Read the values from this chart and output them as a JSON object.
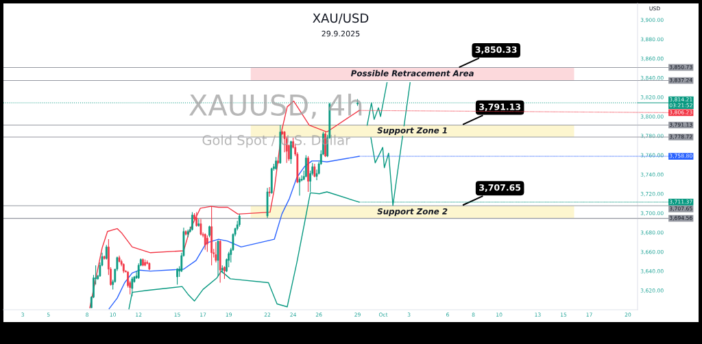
{
  "chart_data": {
    "type": "candlestick",
    "title": "XAU/USD",
    "subtitle": "29.9.2025",
    "ylabel": "USD",
    "ylim": [
      3600,
      3917
    ],
    "yticks": [
      {
        "value": 3620,
        "label": "3,620.00"
      },
      {
        "value": 3640,
        "label": "3,640.00"
      },
      {
        "value": 3660,
        "label": "3,660.00"
      },
      {
        "value": 3680,
        "label": "3,680.00"
      },
      {
        "value": 3700,
        "label": "3,700.00"
      },
      {
        "value": 3720,
        "label": "3,720.00"
      },
      {
        "value": 3740,
        "label": "3,740.00"
      },
      {
        "value": 3760,
        "label": "3,760.00"
      },
      {
        "value": 3780,
        "label": "3,780.00"
      },
      {
        "value": 3800,
        "label": "3,800.00"
      },
      {
        "value": 3820,
        "label": "3,820.00"
      },
      {
        "value": 3840,
        "label": "3,840.00"
      },
      {
        "value": 3860,
        "label": "3,860.00"
      },
      {
        "value": 3880,
        "label": "3,880.00"
      },
      {
        "value": 3900,
        "label": "3,900.00"
      }
    ],
    "xlim": [
      "2025-09-01T12:00",
      "2025-10-20T18:00"
    ],
    "xticks": [
      {
        "value": "2025-09-03",
        "label": "3"
      },
      {
        "value": "2025-09-05",
        "label": "5"
      },
      {
        "value": "2025-09-08",
        "label": "8"
      },
      {
        "value": "2025-09-10",
        "label": "10"
      },
      {
        "value": "2025-09-12",
        "label": "12"
      },
      {
        "value": "2025-09-15",
        "label": "15"
      },
      {
        "value": "2025-09-17",
        "label": "17"
      },
      {
        "value": "2025-09-19",
        "label": "19"
      },
      {
        "value": "2025-09-22",
        "label": "22"
      },
      {
        "value": "2025-09-24",
        "label": "24"
      },
      {
        "value": "2025-09-26",
        "label": "26"
      },
      {
        "value": "2025-09-29",
        "label": "29"
      },
      {
        "value": "2025-10-01",
        "label": "Oct"
      },
      {
        "value": "2025-10-03",
        "label": "3"
      },
      {
        "value": "2025-10-06",
        "label": "6"
      },
      {
        "value": "2025-10-08",
        "label": "8"
      },
      {
        "value": "2025-10-10",
        "label": "10"
      },
      {
        "value": "2025-10-13",
        "label": "13"
      },
      {
        "value": "2025-10-15",
        "label": "15"
      },
      {
        "value": "2025-10-17",
        "label": "17"
      },
      {
        "value": "2025-10-20",
        "label": "20"
      }
    ],
    "grid": false,
    "series": [
      {
        "x": [
          "2025-09-08T08:00",
          "2025-09-08T12:00",
          "2025-09-08T16:00",
          "2025-09-08T20:00",
          "2025-09-09T00:00",
          "2025-09-09T04:00",
          "2025-09-09T08:00",
          "2025-09-09T12:00",
          "2025-09-09T16:00",
          "2025-09-09T20:00",
          "2025-09-10T00:00",
          "2025-09-10T04:00",
          "2025-09-10T08:00",
          "2025-09-10T12:00",
          "2025-09-10T16:00",
          "2025-09-10T20:00",
          "2025-09-11T00:00",
          "2025-09-11T04:00",
          "2025-09-11T08:00",
          "2025-09-11T12:00",
          "2025-09-11T16:00",
          "2025-09-11T20:00",
          "2025-09-12T00:00",
          "2025-09-12T04:00",
          "2025-09-12T08:00",
          "2025-09-12T12:00",
          "2025-09-12T16:00",
          "2025-09-12T20:00",
          "2025-09-15T00:00",
          "2025-09-15T04:00",
          "2025-09-15T08:00",
          "2025-09-15T12:00",
          "2025-09-15T16:00",
          "2025-09-15T20:00",
          "2025-09-16T00:00",
          "2025-09-16T04:00",
          "2025-09-16T08:00",
          "2025-09-16T12:00",
          "2025-09-16T16:00",
          "2025-09-16T20:00",
          "2025-09-17T00:00",
          "2025-09-17T04:00",
          "2025-09-17T08:00",
          "2025-09-17T12:00",
          "2025-09-17T16:00",
          "2025-09-17T20:00",
          "2025-09-18T00:00",
          "2025-09-18T04:00",
          "2025-09-18T08:00",
          "2025-09-18T12:00",
          "2025-09-18T16:00",
          "2025-09-18T20:00",
          "2025-09-19T00:00",
          "2025-09-19T04:00",
          "2025-09-19T08:00",
          "2025-09-19T12:00",
          "2025-09-19T16:00",
          "2025-09-19T20:00",
          "2025-09-22T00:00",
          "2025-09-22T04:00",
          "2025-09-22T08:00",
          "2025-09-22T12:00",
          "2025-09-22T16:00",
          "2025-09-22T20:00",
          "2025-09-23T00:00",
          "2025-09-23T04:00",
          "2025-09-23T08:00",
          "2025-09-23T12:00",
          "2025-09-23T16:00",
          "2025-09-23T20:00",
          "2025-09-24T00:00",
          "2025-09-24T04:00",
          "2025-09-24T08:00",
          "2025-09-24T12:00",
          "2025-09-24T16:00",
          "2025-09-24T20:00",
          "2025-09-25T00:00",
          "2025-09-25T04:00",
          "2025-09-25T08:00",
          "2025-09-25T12:00",
          "2025-09-25T16:00",
          "2025-09-25T20:00",
          "2025-09-26T00:00",
          "2025-09-26T04:00",
          "2025-09-26T08:00",
          "2025-09-26T12:00",
          "2025-09-26T16:00",
          "2025-09-26T20:00",
          "2025-09-29T00:00"
        ],
        "ohlc": [
          [
            3602,
            3614,
            3602,
            3613
          ],
          [
            3613,
            3636,
            3612,
            3633
          ],
          [
            3632,
            3646,
            3626,
            3633
          ],
          [
            3632,
            3636,
            3631,
            3635
          ],
          [
            3635,
            3649,
            3634,
            3646
          ],
          [
            3646,
            3659,
            3645,
            3655
          ],
          [
            3655,
            3656,
            3652,
            3653
          ],
          [
            3653,
            3667,
            3652,
            3665
          ],
          [
            3665,
            3673,
            3636,
            3642
          ],
          [
            3642,
            3644,
            3625,
            3626
          ],
          [
            3626,
            3631,
            3621,
            3629
          ],
          [
            3629,
            3642,
            3628,
            3642
          ],
          [
            3642,
            3655,
            3640,
            3654
          ],
          [
            3654,
            3656,
            3649,
            3650
          ],
          [
            3650,
            3652,
            3645,
            3647
          ],
          [
            3647,
            3648,
            3638,
            3640
          ],
          [
            3640,
            3641,
            3639,
            3639
          ],
          [
            3639,
            3640,
            3623,
            3625
          ],
          [
            3628,
            3630,
            3616,
            3623
          ],
          [
            3622,
            3634,
            3614,
            3632
          ],
          [
            3629,
            3635,
            3628,
            3634
          ],
          [
            3633,
            3640,
            3632,
            3635
          ],
          [
            3633,
            3648,
            3632,
            3646
          ],
          [
            3646,
            3653,
            3645,
            3652
          ],
          [
            3652,
            3653,
            3645,
            3646
          ],
          [
            3649,
            3652,
            3645,
            3646
          ],
          [
            3649,
            3651,
            3647,
            3648
          ],
          [
            3648,
            3649,
            3641,
            3642
          ],
          [
            3634,
            3643,
            3626,
            3642
          ],
          [
            3640,
            3645,
            3634,
            3642
          ],
          [
            3640,
            3659,
            3639,
            3656
          ],
          [
            3656,
            3685,
            3655,
            3681
          ],
          [
            3681,
            3682,
            3677,
            3678
          ],
          [
            3678,
            3683,
            3675,
            3681
          ],
          [
            3681,
            3686,
            3680,
            3683
          ],
          [
            3683,
            3701,
            3682,
            3698
          ],
          [
            3698,
            3700,
            3693,
            3694
          ],
          [
            3695,
            3701,
            3686,
            3687
          ],
          [
            3687,
            3694,
            3686,
            3689
          ],
          [
            3689,
            3694,
            3677,
            3678
          ],
          [
            3678,
            3680,
            3675,
            3677
          ],
          [
            3678,
            3679,
            3662,
            3667
          ],
          [
            3674,
            3677,
            3660,
            3668
          ],
          [
            3677,
            3687,
            3675,
            3686
          ],
          [
            3686,
            3707,
            3646,
            3659
          ],
          [
            3659,
            3663,
            3654,
            3658
          ],
          [
            3657,
            3670,
            3649,
            3651
          ],
          [
            3651,
            3672,
            3635,
            3671
          ],
          [
            3671,
            3672,
            3628,
            3641
          ],
          [
            3641,
            3646,
            3638,
            3643
          ],
          [
            3644,
            3645,
            3632,
            3640
          ],
          [
            3640,
            3653,
            3639,
            3652
          ],
          [
            3651,
            3660,
            3644,
            3658
          ],
          [
            3657,
            3664,
            3649,
            3662
          ],
          [
            3662,
            3679,
            3661,
            3678
          ],
          [
            3678,
            3685,
            3676,
            3684
          ],
          [
            3684,
            3692,
            3682,
            3688
          ],
          [
            3688,
            3699,
            3686,
            3697
          ],
          [
            3697,
            3726,
            3695,
            3722
          ],
          [
            3722,
            3727,
            3717,
            3721
          ],
          [
            3721,
            3747,
            3720,
            3746
          ],
          [
            3746,
            3751,
            3744,
            3748
          ],
          [
            3746,
            3758,
            3745,
            3754
          ],
          [
            3754,
            3755,
            3751,
            3752
          ],
          [
            3752,
            3791,
            3751,
            3784
          ],
          [
            3784,
            3785,
            3781,
            3782
          ],
          [
            3784,
            3785,
            3763,
            3777
          ],
          [
            3777,
            3779,
            3752,
            3764
          ],
          [
            3770,
            3771,
            3754,
            3756
          ],
          [
            3756,
            3775,
            3751,
            3774
          ],
          [
            3774,
            3778,
            3767,
            3768
          ],
          [
            3768,
            3771,
            3759,
            3761
          ],
          [
            3761,
            3763,
            3731,
            3732
          ],
          [
            3732,
            3737,
            3718,
            3735
          ],
          [
            3734,
            3739,
            3733,
            3735
          ],
          [
            3735,
            3744,
            3734,
            3738
          ],
          [
            3738,
            3760,
            3737,
            3757
          ],
          [
            3757,
            3759,
            3722,
            3733
          ],
          [
            3733,
            3744,
            3722,
            3741
          ],
          [
            3741,
            3752,
            3739,
            3748
          ],
          [
            3748,
            3751,
            3737,
            3738
          ],
          [
            3738,
            3745,
            3734,
            3741
          ],
          [
            3741,
            3753,
            3740,
            3751
          ],
          [
            3751,
            3765,
            3750,
            3761
          ],
          [
            3761,
            3784,
            3760,
            3782
          ],
          [
            3782,
            3784,
            3758,
            3759
          ],
          [
            3759,
            3781,
            3758,
            3778
          ],
          [
            3778,
            3814,
            3777,
            3813
          ],
          [
            3813,
            3818,
            3811,
            3814
          ]
        ],
        "colors": [
          "#089981",
          "#089981",
          "#089981",
          "#089981",
          "#089981",
          "#089981",
          "#f23645",
          "#089981",
          "#f23645",
          "#f23645",
          "#089981",
          "#089981",
          "#089981",
          "#f23645",
          "#f23645",
          "#f23645",
          "#f23645",
          "#f23645",
          "#f23645",
          "#089981",
          "#089981",
          "#089981",
          "#089981",
          "#089981",
          "#f23645",
          "#f23645",
          "#f23645",
          "#f23645",
          "#089981",
          "#089981",
          "#089981",
          "#089981",
          "#f23645",
          "#089981",
          "#089981",
          "#089981",
          "#f23645",
          "#f23645",
          "#089981",
          "#f23645",
          "#f23645",
          "#f23645",
          "#f23645",
          "#089981",
          "#f23645",
          "#f23645",
          "#f23645",
          "#089981",
          "#f23645",
          "#089981",
          "#f23645",
          "#089981",
          "#089981",
          "#089981",
          "#089981",
          "#089981",
          "#089981",
          "#089981",
          "#089981",
          "#f23645",
          "#089981",
          "#089981",
          "#089981",
          "#f23645",
          "#089981",
          "#f23645",
          "#f23645",
          "#f23645",
          "#f23645",
          "#089981",
          "#f23645",
          "#f23645",
          "#f23645",
          "#089981",
          "#089981",
          "#089981",
          "#089981",
          "#f23645",
          "#089981",
          "#089981",
          "#f23645",
          "#089981",
          "#089981",
          "#089981",
          "#089981",
          "#f23645",
          "#089981",
          "#089981",
          "#089981"
        ]
      },
      {
        "type": "line",
        "color": "#f23645",
        "x": [
          "2025-09-08T05:00",
          "2025-09-09T04:00",
          "2025-09-09T14:00",
          "2025-09-10T08:00",
          "2025-09-10T17:00",
          "2025-09-11T12:00",
          "2025-09-12T22:00",
          "2025-09-15T12:00",
          "2025-09-15T23:00",
          "2025-09-16T19:00",
          "2025-09-17T15:00",
          "2025-09-18T05:00",
          "2025-09-18T22:00",
          "2025-09-19T17:00",
          "2025-09-22T05:00",
          "2025-09-22T13:00",
          "2025-09-23T03:00",
          "2025-09-23T13:00",
          "2025-09-24T01:00",
          "2025-09-25T06:00",
          "2025-09-26T01:00",
          "2025-09-26T15:00",
          "2025-09-29T03:00"
        ],
        "values": [
          3602,
          3664,
          3681,
          3684,
          3679,
          3665,
          3659,
          3661,
          3682,
          3705,
          3707,
          3706,
          3706,
          3699,
          3701,
          3725,
          3786,
          3810,
          3816,
          3791,
          3787,
          3784,
          3806.23
        ],
        "value_labels": [
          null,
          null,
          null,
          null,
          null,
          null,
          null,
          null,
          null,
          null,
          null,
          null,
          null,
          null,
          null,
          null,
          null,
          null,
          null,
          null,
          null,
          null,
          "3,806.23"
        ]
      },
      {
        "type": "line",
        "color": "#2962ff",
        "x": [
          "2025-09-09T17:00",
          "2025-09-10T08:00",
          "2025-09-10T22:00",
          "2025-09-11T12:00",
          "2025-09-12T02:00",
          "2025-09-12T22:00",
          "2025-09-15T12:00",
          "2025-09-16T11:00",
          "2025-09-17T06:00",
          "2025-09-18T05:00",
          "2025-09-18T22:00",
          "2025-09-19T23:00",
          "2025-09-22T13:00",
          "2025-09-23T03:00",
          "2025-09-23T17:00",
          "2025-09-24T07:00",
          "2025-09-24T21:00",
          "2025-09-25T11:00",
          "2025-09-26T01:00",
          "2025-09-26T15:00",
          "2025-09-29T03:00"
        ],
        "values": [
          3601,
          3612,
          3628,
          3638,
          3641,
          3640,
          3642,
          3651,
          3669,
          3673,
          3671,
          3665,
          3673,
          3699,
          3715,
          3737,
          3748,
          3754,
          3754,
          3753,
          3758.8
        ],
        "value_labels": [
          null,
          null,
          null,
          null,
          null,
          null,
          null,
          null,
          null,
          null,
          null,
          null,
          null,
          null,
          null,
          null,
          null,
          null,
          null,
          null,
          "3,758.80"
        ]
      },
      {
        "type": "line",
        "color": "#089981",
        "x": [
          "2025-09-11T06:00",
          "2025-09-11T12:00",
          "2025-09-12T16:00",
          "2025-09-15T09:00",
          "2025-09-15T20:00",
          "2025-09-16T08:00",
          "2025-09-17T00:00",
          "2025-09-18T02:00",
          "2025-09-18T10:00",
          "2025-09-19T03:00",
          "2025-09-22T02:00",
          "2025-09-22T18:00",
          "2025-09-23T13:00",
          "2025-09-24T07:00",
          "2025-09-24T21:00",
          "2025-09-25T08:00",
          "2025-09-26T01:00",
          "2025-09-26T15:00",
          "2025-09-29T03:00"
        ],
        "values": [
          3601,
          3618,
          3620,
          3624,
          3616,
          3609,
          3621,
          3633,
          3640,
          3632,
          3628,
          3606,
          3603,
          3649,
          3689,
          3721,
          3720,
          3722,
          3711.37
        ],
        "value_labels": [
          null,
          null,
          null,
          null,
          null,
          null,
          null,
          null,
          null,
          null,
          null,
          null,
          null,
          null,
          null,
          null,
          null,
          null,
          "3,711.37"
        ]
      },
      {
        "type": "line",
        "color": "#089981",
        "x": [
          "2025-09-29T18:00",
          "2025-09-30T02:00",
          "2025-09-30T07:00",
          "2025-09-30T15:00",
          "2025-09-30T19:00",
          "2025-10-01T07:00"
        ],
        "values": [
          3791,
          3814,
          3797,
          3809,
          3800,
          3835
        ]
      },
      {
        "type": "line",
        "color": "#089981",
        "x": [
          "2025-09-30T01:00",
          "2025-09-30T09:00",
          "2025-09-30T23:00",
          "2025-10-01T02:00",
          "2025-10-01T10:00",
          "2025-10-01T18:00",
          "2025-10-03T02:00"
        ],
        "values": [
          3778,
          3752,
          3768,
          3747,
          3762,
          3708,
          3835
        ]
      }
    ],
    "bands": [
      {
        "axis": "y",
        "from": 3837.24,
        "to": 3850.73,
        "label": "Possible Retracement Area",
        "color": "#fcd9dc"
      },
      {
        "axis": "y",
        "from": 3778.72,
        "to": 3791.13,
        "label": "Support Zone 1",
        "color": "#fdf6cf"
      },
      {
        "axis": "y",
        "from": 3694.56,
        "to": 3707.65,
        "label": "Support Zone 2",
        "color": "#fdf6cf"
      }
    ],
    "ref_lines": [
      {
        "axis": "y",
        "value": 3850.73,
        "label": "3,850.73",
        "color": "#9598a1"
      },
      {
        "axis": "y",
        "value": 3837.24,
        "label": "3,837.24",
        "color": "#9598a1"
      },
      {
        "axis": "y",
        "value": 3814.21,
        "label": "3,814.21\n03:21:52",
        "color": "#089981",
        "line_style": "dotted"
      },
      {
        "axis": "y",
        "value": 3791.13,
        "label": "3,791.13",
        "color": "#9598a1"
      },
      {
        "axis": "y",
        "value": 3778.72,
        "label": "3,778.72",
        "color": "#9598a1"
      },
      {
        "axis": "y",
        "value": 3707.65,
        "label": "3,707.65",
        "color": "#9598a1"
      },
      {
        "axis": "y",
        "value": 3694.56,
        "label": "3,694.56",
        "color": "#9598a1"
      }
    ],
    "annotations": [
      "XAUUSD, 4h",
      "Gold Spot / U.S. Dollar",
      {
        "text": "3,850.33",
        "x": "2025-10-06T19:00",
        "y": 3850.33
      },
      {
        "text": "3,791.13",
        "x": "2025-10-07T02:00",
        "y": 3791.13
      },
      {
        "text": "3,707.65",
        "x": "2025-10-07T02:00",
        "y": 3707.65
      }
    ]
  }
}
